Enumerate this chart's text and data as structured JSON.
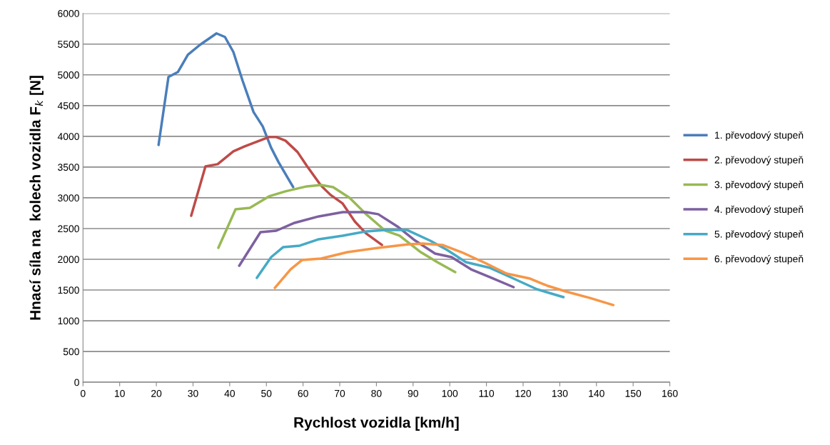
{
  "chart_data": {
    "type": "line",
    "xlabel": "Rychlost vozidla [km/h]",
    "ylabel": "Hnací síla na  kolech vozidla F$_{k}$ [N]",
    "xlim": [
      0,
      160
    ],
    "xticks": [
      0,
      10,
      20,
      30,
      40,
      50,
      60,
      70,
      80,
      90,
      100,
      110,
      120,
      130,
      140,
      150,
      160
    ],
    "ylim": [
      0,
      6000
    ],
    "yticks": [
      0,
      500,
      1000,
      1500,
      2000,
      2500,
      3000,
      3500,
      4000,
      4500,
      5000,
      5500,
      6000
    ],
    "grid": "y",
    "legend": "right",
    "marker": "none",
    "line_style": "solid",
    "series": [
      {
        "name": "1. převodový stupeň",
        "color": "#4a7ebb",
        "x": [
          20.6,
          23.3,
          25.9,
          28.6,
          31.9,
          36.4,
          38.7,
          41.0,
          43.5,
          46.5,
          49.0,
          51.3,
          53.3,
          57.3
        ],
        "values": [
          3860,
          4965,
          5047,
          5326,
          5488,
          5674,
          5616,
          5372,
          4907,
          4395,
          4163,
          3814,
          3581,
          3174
        ]
      },
      {
        "name": "2. převodový stupeň",
        "color": "#be4b48",
        "x": [
          29.5,
          33.4,
          36.7,
          41.0,
          44.1,
          50.7,
          52.7,
          55.2,
          58.5,
          61.0,
          64.9,
          67.5,
          70.8,
          74.1,
          77.2,
          81.5
        ],
        "values": [
          2709,
          3512,
          3547,
          3756,
          3837,
          3988,
          3988,
          3930,
          3744,
          3523,
          3198,
          3047,
          2907,
          2616,
          2419,
          2233
        ]
      },
      {
        "name": "3. převodový stupeň",
        "color": "#98b954",
        "x": [
          36.9,
          41.6,
          45.5,
          50.7,
          55.2,
          61.0,
          64.9,
          68.2,
          72.7,
          77.2,
          82.4,
          86.3,
          92.1,
          96.6,
          101.5
        ],
        "values": [
          2186,
          2814,
          2837,
          3023,
          3105,
          3186,
          3209,
          3174,
          3000,
          2733,
          2465,
          2384,
          2116,
          1953,
          1791
        ]
      },
      {
        "name": "4. převodový stupeň",
        "color": "#7d60a0",
        "x": [
          42.6,
          48.4,
          52.7,
          57.7,
          64.3,
          70.8,
          77.2,
          80.5,
          85.7,
          90.2,
          96.0,
          100.5,
          105.8,
          111.0,
          117.4
        ],
        "values": [
          1895,
          2442,
          2465,
          2593,
          2698,
          2767,
          2767,
          2733,
          2535,
          2320,
          2093,
          2035,
          1837,
          1709,
          1547
        ]
      },
      {
        "name": "5. převodový stupeň",
        "color": "#46aac5",
        "x": [
          47.4,
          51.3,
          54.6,
          59.1,
          64.3,
          70.8,
          77.2,
          82.4,
          88.3,
          94.7,
          99.3,
          104.4,
          111.0,
          117.4,
          123.8,
          131.0
        ],
        "values": [
          1698,
          2035,
          2198,
          2221,
          2326,
          2384,
          2453,
          2477,
          2477,
          2302,
          2151,
          1953,
          1860,
          1686,
          1512,
          1384
        ]
      },
      {
        "name": "6. převodový stupeň",
        "color": "#f79646",
        "x": [
          52.3,
          56.6,
          59.7,
          64.9,
          72.1,
          80.5,
          88.8,
          92.7,
          98.0,
          103.2,
          109.6,
          115.5,
          121.9,
          126.6,
          131.6,
          138.2,
          144.6
        ],
        "values": [
          1535,
          1837,
          1988,
          2012,
          2116,
          2186,
          2244,
          2256,
          2233,
          2116,
          1942,
          1767,
          1686,
          1570,
          1477,
          1372,
          1256
        ]
      }
    ]
  }
}
